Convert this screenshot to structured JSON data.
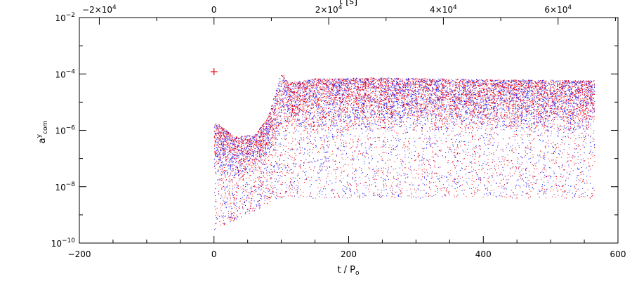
{
  "chart_data": {
    "type": "scatter",
    "title": "",
    "xlabel": "t / P",
    "xlabel_sub": "o",
    "ylabel": "a",
    "ylabel_sup": "y",
    "ylabel_sub": "com",
    "top_xlabel": "t [s]",
    "xlim": [
      -200,
      600
    ],
    "ylim": [
      1e-10,
      0.01
    ],
    "y_scale": "log",
    "grid": false,
    "legend": "none",
    "x_ticks": [
      -200,
      0,
      200,
      400,
      600
    ],
    "x_tick_labels": [
      "−200",
      "0",
      "200",
      "400",
      "600"
    ],
    "y_ticks": [
      1e-10,
      1e-08,
      1e-06,
      0.0001,
      0.01
    ],
    "y_tick_labels": [
      {
        "base": "10",
        "exp": "−10"
      },
      {
        "base": "10",
        "exp": "−8"
      },
      {
        "base": "10",
        "exp": "−6"
      },
      {
        "base": "10",
        "exp": "−4"
      },
      {
        "base": "10",
        "exp": "−2"
      }
    ],
    "top_axis": {
      "unit": "s",
      "ticks_seconds": [
        -20000,
        0,
        20000,
        40000,
        60000
      ],
      "tick_labels": [
        {
          "text": "−2×10",
          "exp": "4"
        },
        {
          "text": "0",
          "exp": ""
        },
        {
          "text": "2×10",
          "exp": "4"
        },
        {
          "text": "4×10",
          "exp": "4"
        },
        {
          "text": "6×10",
          "exp": "4"
        }
      ],
      "seconds_per_x_unit": 117.4
    },
    "marker": {
      "x": 0,
      "y": 0.00012,
      "symbol": "+",
      "color": "#e00000"
    },
    "series": [
      {
        "color": "#0000ff",
        "x_range": [
          0,
          565
        ],
        "upper_envelope": [
          [
            0,
            2e-06
          ],
          [
            10,
            1.5e-06
          ],
          [
            30,
            6e-07
          ],
          [
            60,
            7e-07
          ],
          [
            80,
            3e-06
          ],
          [
            100,
            0.00012
          ],
          [
            110,
            5e-05
          ],
          [
            150,
            7e-05
          ],
          [
            250,
            7.5e-05
          ],
          [
            400,
            6.5e-05
          ],
          [
            565,
            6e-05
          ]
        ],
        "dense_lower": [
          [
            0,
            3e-08
          ],
          [
            30,
            1e-08
          ],
          [
            60,
            2e-08
          ],
          [
            90,
            1e-07
          ],
          [
            110,
            6e-07
          ],
          [
            200,
            8e-07
          ],
          [
            400,
            8e-07
          ],
          [
            565,
            7e-07
          ]
        ],
        "scatter_floor": [
          [
            0,
            3e-10
          ],
          [
            100,
            4e-09
          ],
          [
            565,
            4e-09
          ]
        ]
      },
      {
        "color": "#ff0000",
        "x_range": [
          0,
          565
        ],
        "upper_envelope": [
          [
            0,
            2e-06
          ],
          [
            10,
            1.5e-06
          ],
          [
            30,
            6e-07
          ],
          [
            60,
            7e-07
          ],
          [
            80,
            3e-06
          ],
          [
            100,
            0.00012
          ],
          [
            110,
            5e-05
          ],
          [
            150,
            7e-05
          ],
          [
            250,
            7.5e-05
          ],
          [
            400,
            6.5e-05
          ],
          [
            565,
            6e-05
          ]
        ],
        "dense_lower": [
          [
            0,
            3e-08
          ],
          [
            30,
            1e-08
          ],
          [
            60,
            2e-08
          ],
          [
            90,
            1e-07
          ],
          [
            110,
            6e-07
          ],
          [
            200,
            8e-07
          ],
          [
            400,
            8e-07
          ],
          [
            565,
            7e-07
          ]
        ],
        "scatter_floor": [
          [
            0,
            3e-10
          ],
          [
            100,
            4e-09
          ],
          [
            565,
            4e-09
          ]
        ]
      }
    ]
  }
}
